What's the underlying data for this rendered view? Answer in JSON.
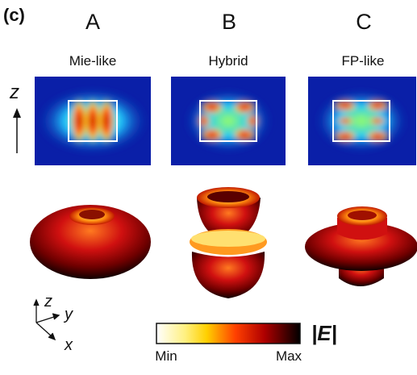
{
  "panel_label": "(c)",
  "columns": [
    {
      "letter": "A",
      "label": "Mie-like"
    },
    {
      "letter": "B",
      "label": "Hybrid"
    },
    {
      "letter": "C",
      "label": "FP-like"
    }
  ],
  "axis_z_label": "z",
  "axes_triad": {
    "z": "z",
    "y": "y",
    "x": "x"
  },
  "colorbar": {
    "title": "|E|",
    "min_label": "Min",
    "max_label": "Max"
  }
}
